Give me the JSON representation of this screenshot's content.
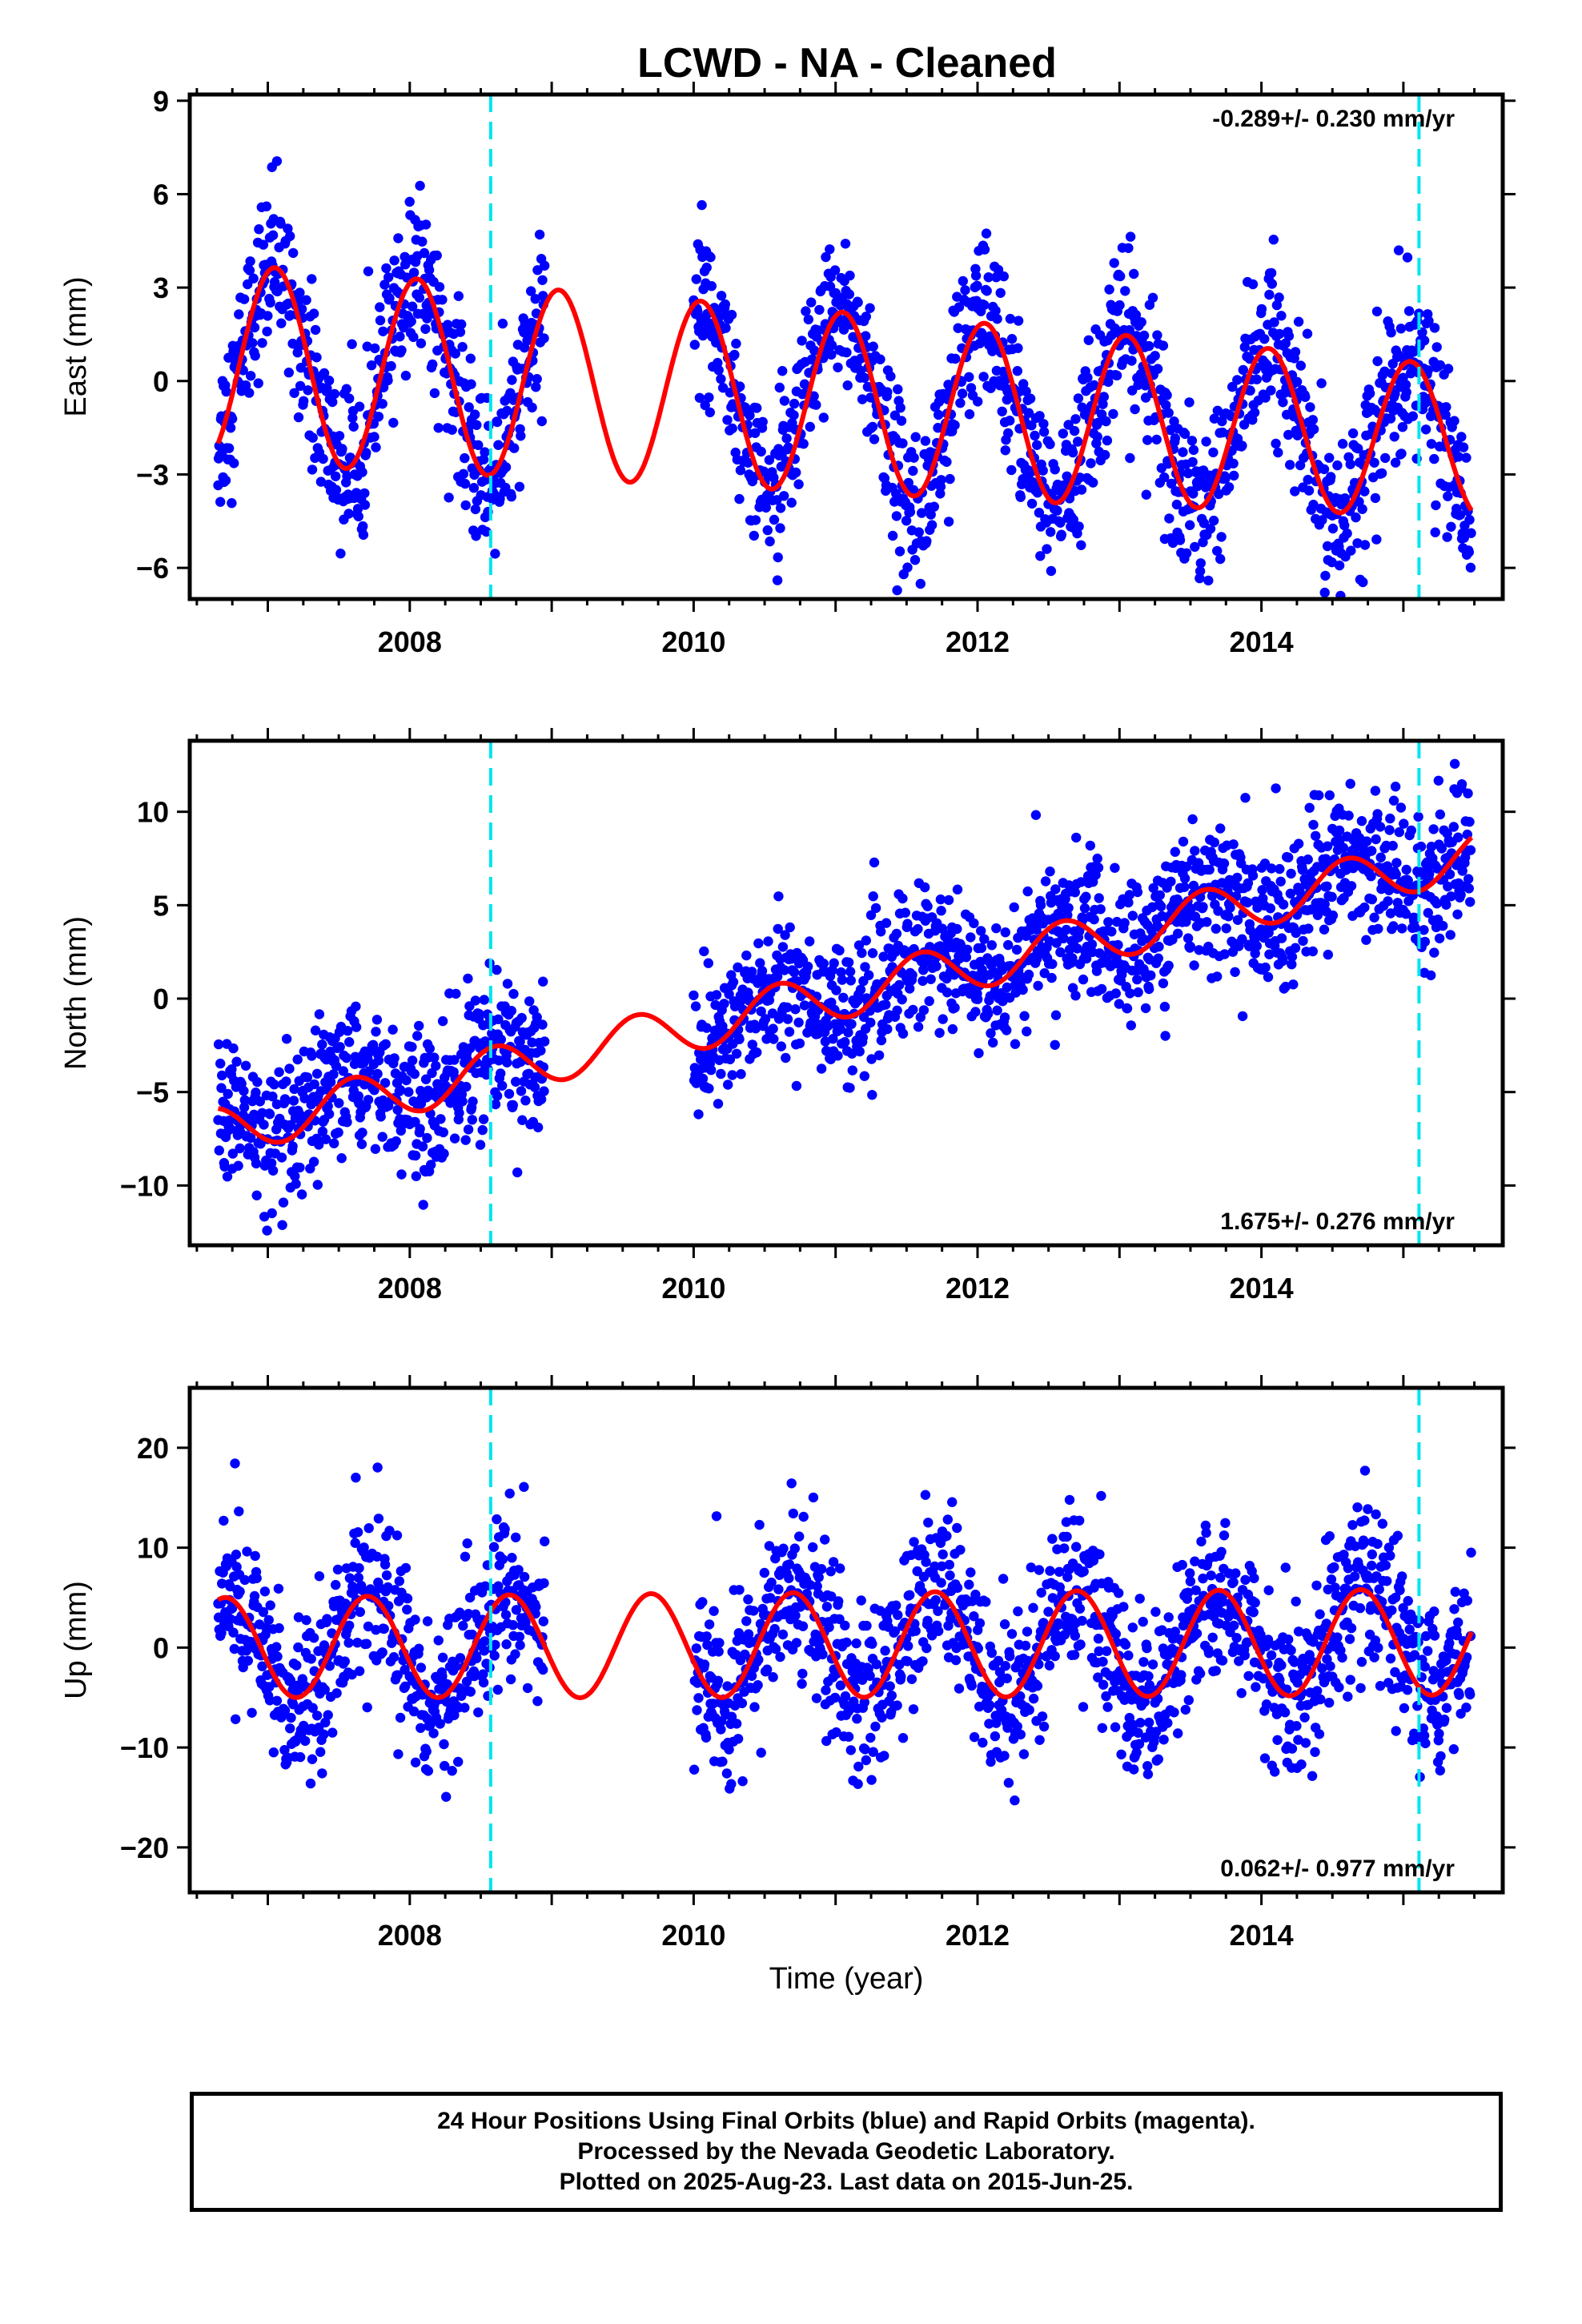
{
  "chart_data": {
    "type": "scatter",
    "title": "LCWD  - NA - Cleaned",
    "xlabel": "Time (year)",
    "xlim": [
      2006.45,
      2015.7
    ],
    "x_ticks": [
      2008,
      2010,
      2012,
      2014
    ],
    "event_lines_x": [
      2008.57,
      2015.11
    ],
    "data_range": [
      2006.65,
      2015.48
    ],
    "data_gap": [
      2008.95,
      2010.0
    ],
    "panels": [
      {
        "key": "east",
        "ylabel": "East (mm)",
        "ylim": [
          -7,
          9.2
        ],
        "y_ticks": [
          9,
          6,
          3,
          0,
          -3,
          -6
        ],
        "rate": "-0.289+/- 0.230 mm/yr",
        "rate_position": "top-right",
        "series": [
          {
            "name": "Final Orbits",
            "color": "#0000ff",
            "type": "scatter"
          },
          {
            "name": "Model fit",
            "color": "#ff0000",
            "type": "line",
            "trend": [
              -0.289,
              0.6
            ],
            "amplitude": [
              3.2,
              3.0,
              2.8,
              2.4
            ],
            "amplitude_years": [
              2006.6,
              2009.5,
              2012.5,
              2015.6
            ],
            "phase_peak": 2007.05,
            "noise": 1.3
          }
        ]
      },
      {
        "key": "north",
        "ylabel": "North (mm)",
        "ylim": [
          -13.2,
          13.8
        ],
        "y_ticks": [
          10,
          5,
          0,
          -5,
          -10
        ],
        "rate": "1.675+/- 0.276 mm/yr",
        "rate_position": "bottom-right",
        "series": [
          {
            "name": "Final Orbits",
            "color": "#0000ff",
            "type": "scatter"
          },
          {
            "name": "Model fit",
            "color": "#ff0000",
            "type": "line",
            "trend": [
              1.675,
              -7.2
            ],
            "amplitude": [
              1.3,
              1.3,
              1.3,
              1.3
            ],
            "amplitude_years": [
              2006.6,
              2009.5,
              2012.5,
              2015.6
            ],
            "phase_peak": 2007.6,
            "noise": 1.9
          }
        ]
      },
      {
        "key": "up",
        "ylabel": "Up (mm)",
        "ylim": [
          -24.5,
          26
        ],
        "y_ticks": [
          20,
          10,
          0,
          -10,
          -20
        ],
        "rate": "0.062+/- 0.977 mm/yr",
        "rate_position": "bottom-right",
        "series": [
          {
            "name": "Final Orbits",
            "color": "#0000ff",
            "type": "scatter"
          },
          {
            "name": "Model fit",
            "color": "#ff0000",
            "type": "line",
            "trend": [
              0.062,
              0.0
            ],
            "amplitude": [
              5.0,
              5.2,
              5.3,
              5.3
            ],
            "amplitude_years": [
              2006.6,
              2009.5,
              2012.5,
              2015.6
            ],
            "phase_peak": 2008.7,
            "noise": 4.2
          }
        ]
      }
    ]
  },
  "footer": {
    "line1": "24 Hour Positions Using Final Orbits (blue) and Rapid Orbits (magenta).",
    "line2": "Processed by the Nevada Geodetic Laboratory.",
    "line3": "Plotted on 2025-Aug-23. Last data on 2015-Jun-25."
  },
  "colors": {
    "points": "#0000ff",
    "model": "#ff0000",
    "event_line": "#00e5ee",
    "frame": "#000000"
  }
}
